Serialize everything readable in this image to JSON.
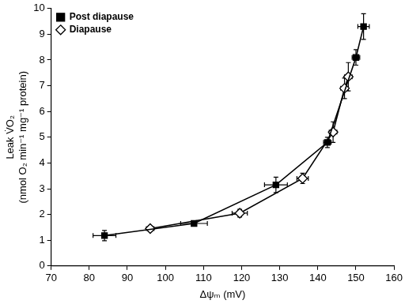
{
  "chart_data": {
    "type": "scatter",
    "xlabel": "Δψₘ (mV)",
    "ylabel": [
      "Leak V̇O₂",
      "(nmol O₂ min⁻¹ mg⁻¹ protein)"
    ],
    "xlim": [
      70,
      160
    ],
    "xticks": [
      70,
      80,
      90,
      100,
      110,
      120,
      130,
      140,
      150,
      160
    ],
    "ylim": [
      0,
      10
    ],
    "yticks": [
      0,
      1,
      2,
      3,
      4,
      5,
      6,
      7,
      8,
      9,
      10
    ],
    "grid": false,
    "legend": "upper left",
    "series": [
      {
        "name": "Post diapause",
        "color": "#000000",
        "marker": "square",
        "line_style": "solid",
        "x": [
          84,
          107.5,
          129,
          142.5,
          150,
          152
        ],
        "values": [
          1.18,
          1.65,
          3.15,
          4.8,
          8.1,
          9.3
        ],
        "x_error": [
          3,
          3.5,
          3,
          1,
          1,
          1.5
        ],
        "y_error": [
          0.2,
          0.1,
          0.3,
          0.2,
          0.3,
          0.5
        ]
      },
      {
        "name": "Diapause",
        "color": "#000000",
        "marker": "diamond",
        "line_style": "solid",
        "x": [
          96,
          119.5,
          136,
          144,
          147,
          148
        ],
        "values": [
          1.45,
          2.05,
          3.4,
          5.2,
          6.9,
          7.35
        ],
        "x_error": [
          1,
          2,
          1.5,
          1,
          1,
          1
        ],
        "y_error": [
          0.1,
          0.15,
          0.2,
          0.4,
          0.4,
          0.55
        ]
      }
    ]
  }
}
